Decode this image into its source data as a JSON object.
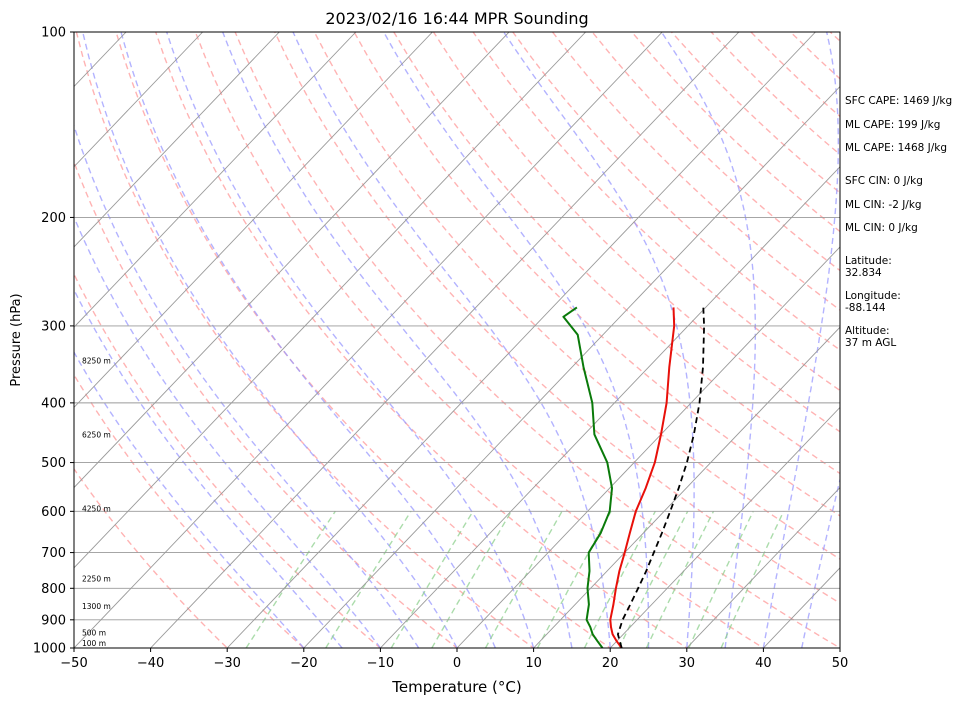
{
  "chart_data": {
    "type": "skew-t",
    "title": "2023/02/16 16:44 MPR Sounding",
    "xlabel": "Temperature (°C)",
    "ylabel": "Pressure (hPa)",
    "xlim": [
      -50,
      50
    ],
    "ylim": [
      1000,
      100
    ],
    "y_scale": "log",
    "grid": true,
    "x_ticks": [
      "−50",
      "−40",
      "−30",
      "−20",
      "−10",
      "0",
      "10",
      "20",
      "30",
      "40",
      "50"
    ],
    "y_ticks": [
      "100",
      "200",
      "300",
      "400",
      "500",
      "600",
      "700",
      "800",
      "900",
      "1000"
    ],
    "colors": {
      "temperature": "#e8100a",
      "dewpoint": "#0a7a0a",
      "parcel": "#000000",
      "dry_adiabats": "#ff9a9a",
      "moist_adiabats": "#9a9aff",
      "mixing_ratio": "#8fd08f",
      "isotherms": "#9a9a9a"
    },
    "series": [
      {
        "role": "temperature",
        "style": "solid",
        "points": [
          [
            1000,
            21.5
          ],
          [
            975,
            20.0
          ],
          [
            950,
            18.6
          ],
          [
            925,
            17.5
          ],
          [
            900,
            16.5
          ],
          [
            850,
            15.0
          ],
          [
            800,
            13.3
          ],
          [
            750,
            11.6
          ],
          [
            700,
            10.0
          ],
          [
            650,
            8.2
          ],
          [
            600,
            6.3
          ],
          [
            550,
            4.7
          ],
          [
            500,
            2.7
          ],
          [
            450,
            0.0
          ],
          [
            400,
            -3.2
          ],
          [
            350,
            -7.3
          ],
          [
            300,
            -11.8
          ],
          [
            280,
            -14.2
          ]
        ]
      },
      {
        "role": "dewpoint",
        "style": "solid",
        "points": [
          [
            1000,
            19.0
          ],
          [
            975,
            17.5
          ],
          [
            950,
            16.0
          ],
          [
            925,
            14.8
          ],
          [
            900,
            13.4
          ],
          [
            850,
            11.8
          ],
          [
            800,
            9.6
          ],
          [
            750,
            7.7
          ],
          [
            700,
            5.3
          ],
          [
            650,
            4.4
          ],
          [
            600,
            2.9
          ],
          [
            550,
            0.3
          ],
          [
            500,
            -3.5
          ],
          [
            450,
            -8.7
          ],
          [
            400,
            -12.9
          ],
          [
            350,
            -18.5
          ],
          [
            310,
            -23.3
          ],
          [
            290,
            -27.4
          ],
          [
            280,
            -26.8
          ]
        ]
      },
      {
        "role": "parcel",
        "style": "dashed",
        "points": [
          [
            1000,
            21.5
          ],
          [
            950,
            19.3
          ],
          [
            900,
            18.1
          ],
          [
            850,
            17.2
          ],
          [
            800,
            16.2
          ],
          [
            750,
            15.1
          ],
          [
            700,
            13.8
          ],
          [
            650,
            12.4
          ],
          [
            600,
            10.8
          ],
          [
            550,
            9.0
          ],
          [
            500,
            6.9
          ],
          [
            450,
            4.3
          ],
          [
            400,
            1.1
          ],
          [
            350,
            -2.9
          ],
          [
            300,
            -7.9
          ],
          [
            280,
            -10.3
          ]
        ]
      }
    ],
    "height_labels": [
      "100 m",
      "500 m",
      "1300 m",
      "2250 m",
      "4250 m",
      "6250 m",
      "8250 m"
    ],
    "height_label_pressures": [
      1000,
      955,
      865,
      780,
      600,
      455,
      345
    ],
    "annotations": {
      "sfc_cape": "SFC CAPE: 1469 J/kg",
      "ml_cape": "ML CAPE: 199 J/kg",
      "ml_cape_2": "ML CAPE: 1468 J/kg",
      "sfc_cin": "SFC CIN: 0 J/kg",
      "ml_cin": "ML CIN: -2 J/kg",
      "ml_cin_2": "ML CIN: 0 J/kg",
      "latitude_label": "Latitude:",
      "latitude_value": "32.834",
      "longitude_label": "Longitude:",
      "longitude_value": "-88.144",
      "altitude_label": "Altitude:",
      "altitude_value": "37 m AGL"
    }
  }
}
